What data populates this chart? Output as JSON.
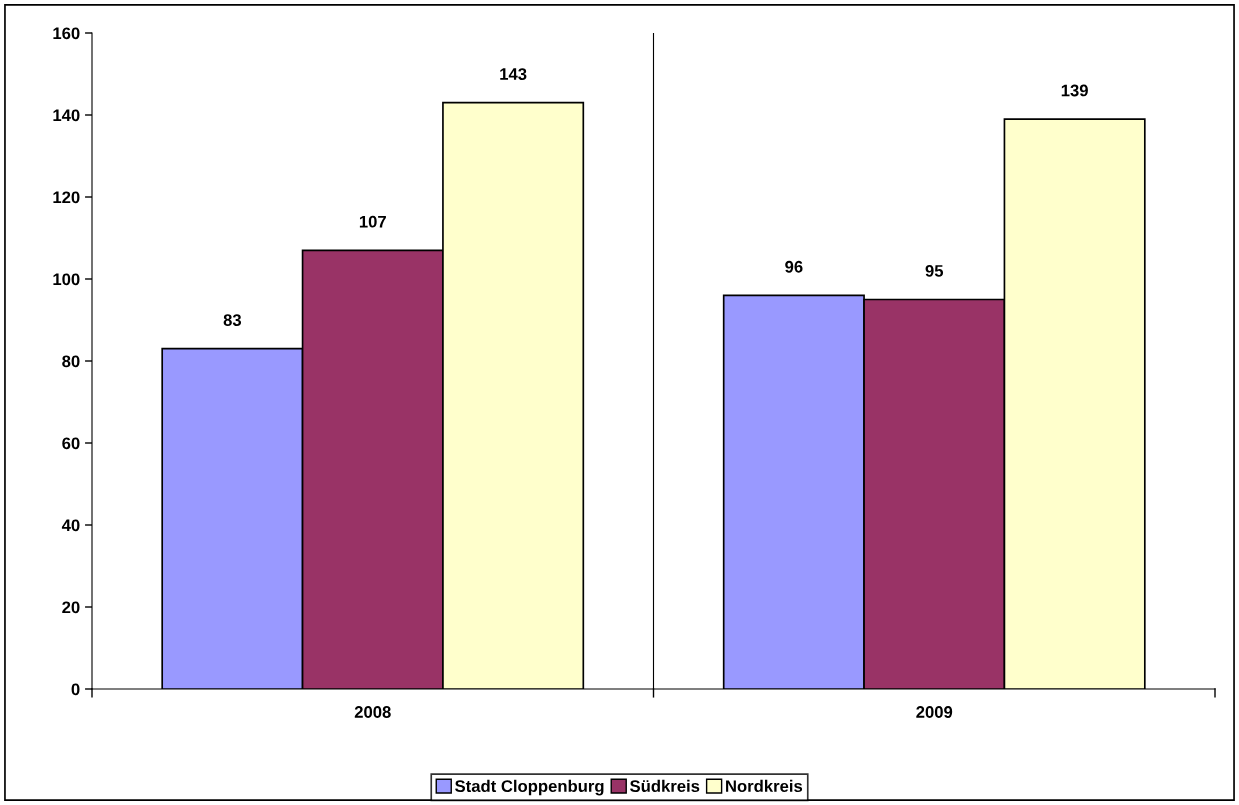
{
  "chart_data": {
    "type": "bar",
    "categories": [
      "2008",
      "2009"
    ],
    "series": [
      {
        "name": "Stadt Cloppenburg",
        "color": "#9999ff",
        "values": [
          83,
          96
        ]
      },
      {
        "name": "Südkreis",
        "color": "#993366",
        "values": [
          107,
          95
        ]
      },
      {
        "name": "Nordkreis",
        "color": "#ffffcc",
        "values": [
          143,
          139
        ]
      }
    ],
    "ylim": [
      0,
      160
    ],
    "yticks": [
      0,
      20,
      40,
      60,
      80,
      100,
      120,
      140,
      160
    ],
    "data_labels": true,
    "grid": "x",
    "legend": "bottom"
  }
}
